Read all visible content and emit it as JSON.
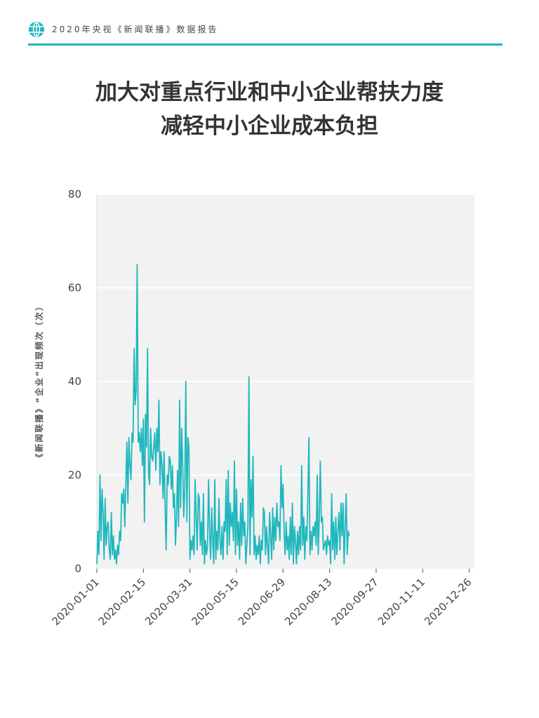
{
  "header": {
    "report": "2020年央视《新闻联播》数据报告",
    "icon": "globe-icon",
    "accent_color": "#1fb7bd"
  },
  "title": {
    "line1": "加大对重点行业和中小企业帮扶力度",
    "line2": "减轻中小企业成本负担"
  },
  "chart_data": {
    "type": "line",
    "ylabel": "《新闻联播》“企业”出现频次（次）",
    "xlabel": "",
    "ylim": [
      0,
      80
    ],
    "yticks": [
      0,
      20,
      40,
      60,
      80
    ],
    "xlim": [
      "2020-01-01",
      "2020-12-31"
    ],
    "xticks": [
      "2020-01-01",
      "2020-02-15",
      "2020-03-31",
      "2020-05-15",
      "2020-06-29",
      "2020-08-13",
      "2020-09-27",
      "2020-11-11",
      "2020-12-26"
    ],
    "grid": true,
    "line_color": "#1fb7bd",
    "background_color": "#f2f2f2",
    "series": [
      {
        "name": "",
        "x_start": "2020-01-01",
        "x_step_days": 1,
        "values": [
          1,
          8,
          3,
          20,
          6,
          17,
          12,
          2,
          15,
          5,
          9,
          10,
          4,
          2,
          12,
          3,
          7,
          2,
          4,
          1,
          5,
          3,
          8,
          6,
          16,
          14,
          17,
          9,
          18,
          27,
          14,
          28,
          22,
          19,
          29,
          27,
          47,
          35,
          38,
          65,
          27,
          29,
          25,
          30,
          22,
          32,
          10,
          33,
          26,
          47,
          20,
          18,
          30,
          24,
          23,
          26,
          29,
          21,
          30,
          25,
          36,
          18,
          25,
          22,
          15,
          25,
          13,
          4,
          20,
          18,
          24,
          23,
          17,
          22,
          13,
          16,
          5,
          11,
          21,
          9,
          36,
          13,
          30,
          22,
          11,
          17,
          40,
          10,
          28,
          26,
          2,
          6,
          4,
          7,
          3,
          19,
          11,
          4,
          16,
          15,
          5,
          10,
          3,
          16,
          1,
          6,
          3,
          5,
          19,
          8,
          2,
          13,
          6,
          1,
          19,
          2,
          8,
          4,
          15,
          6,
          3,
          9,
          2,
          10,
          8,
          19,
          3,
          21,
          5,
          14,
          9,
          12,
          6,
          23,
          3,
          17,
          5,
          10,
          2,
          14,
          5,
          15,
          7,
          10,
          1,
          5,
          9,
          41,
          3,
          19,
          11,
          24,
          3,
          7,
          2,
          5,
          3,
          7,
          1,
          6,
          4,
          13,
          12,
          3,
          9,
          5,
          1,
          12,
          7,
          2,
          13,
          4,
          11,
          6,
          14,
          9,
          10,
          6,
          22,
          13,
          18,
          8,
          3,
          10,
          4,
          7,
          2,
          11,
          3,
          14,
          1,
          9,
          6,
          1,
          8,
          3,
          9,
          4,
          22,
          5,
          11,
          2,
          9,
          6,
          16,
          28,
          3,
          8,
          4,
          9,
          7,
          10,
          5,
          20,
          3,
          11,
          23,
          10,
          11,
          4,
          5,
          6,
          3,
          7,
          5,
          6,
          1,
          16,
          4,
          10,
          2,
          11,
          3,
          8,
          12,
          4,
          14,
          7,
          14,
          1,
          9,
          16,
          3,
          8,
          7
        ]
      }
    ]
  }
}
